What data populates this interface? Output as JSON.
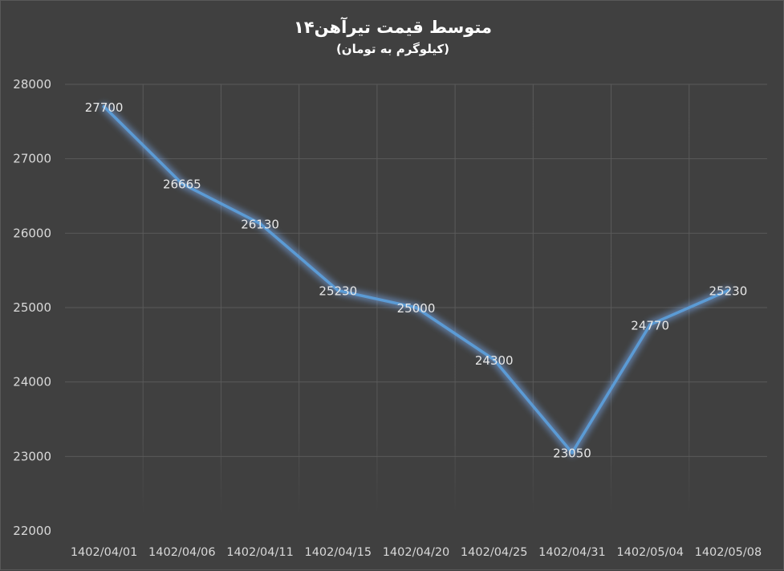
{
  "chart_data": {
    "type": "line",
    "title": "متوسط قیمت تیرآهن۱۴",
    "subtitle": "(کیلوگرم به تومان)",
    "xlabel": "",
    "ylabel": "",
    "categories": [
      "1402/04/01",
      "1402/04/06",
      "1402/04/11",
      "1402/04/15",
      "1402/04/20",
      "1402/04/25",
      "1402/04/31",
      "1402/05/04",
      "1402/05/08"
    ],
    "series": [
      {
        "values": [
          27700,
          26665,
          26130,
          25230,
          25000,
          24300,
          23050,
          24770,
          25230
        ]
      }
    ],
    "data_labels": [
      "27700",
      "26665",
      "26130",
      "25230",
      "25000",
      "24300",
      "23050",
      "24770",
      "25230"
    ],
    "ylim": [
      22000,
      28000
    ],
    "yticks": [
      22000,
      23000,
      24000,
      25000,
      26000,
      27000,
      28000
    ],
    "ytick_labels": [
      "22000",
      "23000",
      "24000",
      "25000",
      "26000",
      "27000",
      "28000"
    ],
    "grid": "vertical and horizontal",
    "legend": "none",
    "colors": {
      "background": "#404040",
      "line": "#5b9bd5",
      "glow": "#7fb5ff",
      "grid": "#5a5a5a",
      "axis_text": "#d9d9d9",
      "label_text": "#e8e8e8",
      "title": "#ffffff"
    }
  }
}
